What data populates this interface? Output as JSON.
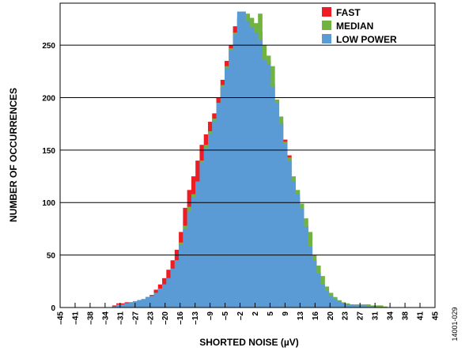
{
  "figure_id": "14001-029",
  "chart_data": {
    "type": "bar",
    "xlabel": "SHORTED NOISE (µV)",
    "ylabel": "NUMBER OF OCCURRENCES",
    "xlim": [
      -45,
      45
    ],
    "ylim": [
      0,
      290
    ],
    "yticks": [
      0,
      50,
      100,
      150,
      200,
      250
    ],
    "xtick_labels": [
      "–45",
      "–41",
      "–38",
      "–34",
      "–31",
      "–27",
      "–23",
      "–20",
      "–16",
      "–13",
      "–9",
      "–5",
      "–2",
      "2",
      "5",
      "9",
      "13",
      "16",
      "20",
      "23",
      "27",
      "31",
      "34",
      "38",
      "41",
      "45"
    ],
    "grid": "horizontal",
    "legend_position": "top-right",
    "bin_width": 1,
    "x": [
      -33,
      -32,
      -31,
      -30,
      -29,
      -28,
      -27,
      -26,
      -25,
      -24,
      -23,
      -22,
      -21,
      -20,
      -19,
      -18,
      -17,
      -16,
      -15,
      -14,
      -13,
      -12,
      -11,
      -10,
      -9,
      -8,
      -7,
      -6,
      -5,
      -4,
      -3,
      -2,
      -1,
      0,
      1,
      2,
      3,
      4,
      5,
      6,
      7,
      8,
      9,
      10,
      11,
      12,
      13,
      14,
      15,
      16,
      17,
      18,
      19,
      20,
      21,
      22,
      23,
      24,
      25,
      26,
      27,
      28,
      29,
      30,
      31,
      32,
      33
    ],
    "series": [
      {
        "name": "FAST",
        "color": "#ee1c24",
        "values": [
          0,
          2,
          4,
          4,
          5,
          5,
          6,
          7,
          8,
          10,
          12,
          17,
          22,
          28,
          36,
          45,
          55,
          72,
          95,
          112,
          125,
          140,
          155,
          165,
          177,
          185,
          200,
          217,
          235,
          250,
          268,
          275,
          277,
          273,
          270,
          268,
          263,
          238,
          235,
          213,
          198,
          177,
          160,
          145,
          120,
          105,
          95,
          78,
          60,
          45,
          33,
          22,
          15,
          10,
          8,
          5,
          4,
          3,
          2,
          2,
          2,
          2,
          2,
          1,
          0,
          0,
          0
        ]
      },
      {
        "name": "MEDIAN",
        "color": "#71b341",
        "values": [
          0,
          1,
          3,
          3,
          4,
          5,
          6,
          7,
          8,
          10,
          11,
          14,
          18,
          22,
          28,
          37,
          45,
          62,
          78,
          96,
          108,
          120,
          140,
          155,
          168,
          180,
          195,
          212,
          230,
          247,
          262,
          277,
          282,
          280,
          276,
          271,
          280,
          250,
          240,
          230,
          198,
          182,
          158,
          143,
          125,
          112,
          99,
          85,
          72,
          50,
          40,
          30,
          20,
          14,
          10,
          7,
          5,
          4,
          3,
          3,
          3,
          3,
          3,
          2,
          2,
          2,
          1
        ]
      },
      {
        "name": "LOW POWER",
        "color": "#5b9bd5",
        "values": [
          0,
          1,
          3,
          3,
          4,
          5,
          6,
          7,
          8,
          10,
          11,
          14,
          18,
          22,
          28,
          37,
          45,
          60,
          75,
          92,
          105,
          120,
          138,
          152,
          165,
          178,
          195,
          210,
          228,
          245,
          260,
          282,
          282,
          273,
          267,
          262,
          255,
          236,
          232,
          210,
          195,
          175,
          156,
          140,
          120,
          108,
          94,
          77,
          58,
          45,
          33,
          22,
          16,
          11,
          8,
          6,
          4,
          3,
          3,
          2,
          2,
          2,
          1,
          1,
          0,
          0,
          0
        ]
      }
    ]
  }
}
